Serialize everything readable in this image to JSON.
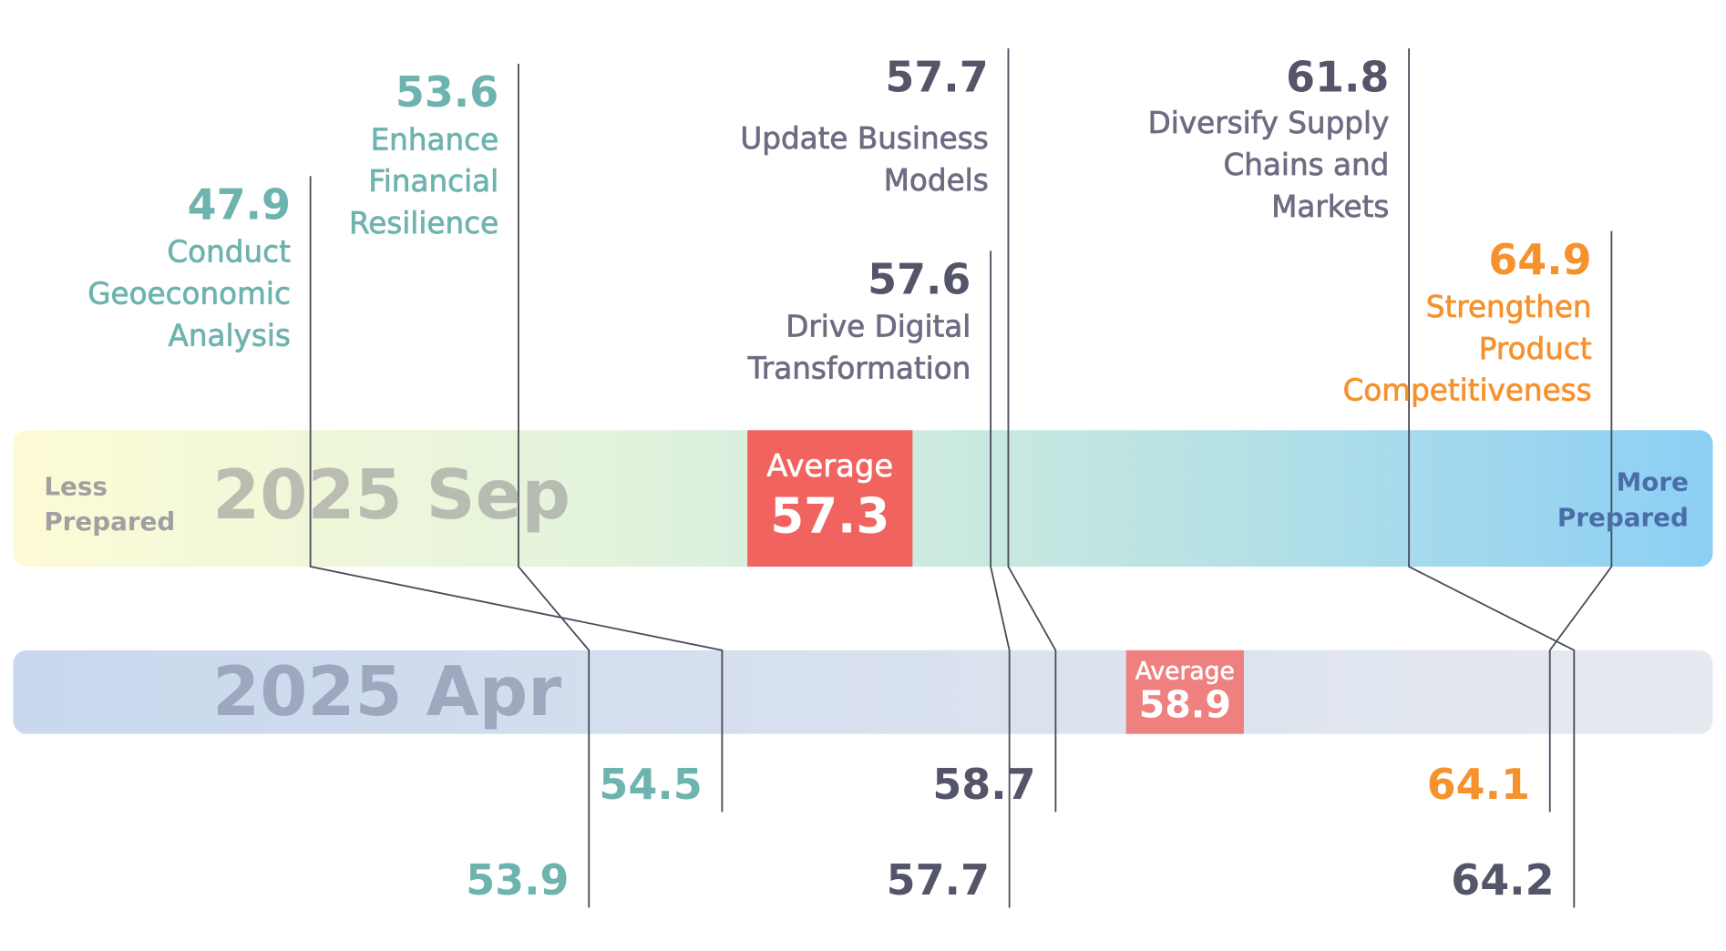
{
  "chart_data": {
    "type": "slope",
    "categories": [
      "Conduct\nGeoeconomic\nAnalysis",
      "Enhance\nFinancial\nResilience",
      "Drive Digital\nTransformation",
      "Update Business\nModels",
      "Diversify Supply\nChains and\nMarkets",
      "Strengthen\nProduct\nCompetitiveness"
    ],
    "colors": [
      "#6db3ae",
      "#6db3ae",
      "#55556a",
      "#55556a",
      "#55556a",
      "#f5922e"
    ],
    "series": [
      {
        "name": "2025 Sep",
        "values": [
          47.9,
          53.6,
          57.6,
          57.7,
          61.8,
          64.9
        ]
      },
      {
        "name": "2025 Apr",
        "values": [
          54.5,
          53.9,
          57.7,
          58.7,
          64.2,
          64.1
        ]
      }
    ],
    "average_label": "Average",
    "averages": [
      57.3,
      58.9
    ],
    "axis_labels": [
      "Less\nPrepared",
      "More\nPrepared"
    ]
  }
}
